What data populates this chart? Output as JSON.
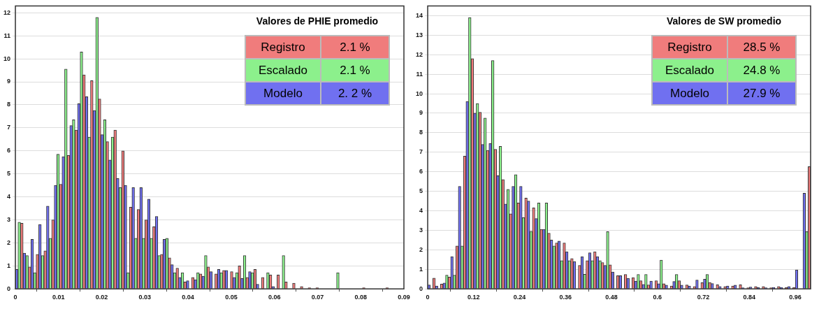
{
  "chart_data": [
    {
      "type": "histogram",
      "legend_title": "Valores de PHIE promedio",
      "legend": "top right",
      "grid": "y",
      "bins": [
        0,
        0.0018,
        0.0036,
        0.0054,
        0.0072,
        0.009,
        0.0108,
        0.0126,
        0.0144,
        0.0162,
        0.018,
        0.0198,
        0.0216,
        0.0234,
        0.0252,
        0.027,
        0.0288,
        0.0306,
        0.0324,
        0.0342,
        0.036,
        0.0378,
        0.0396,
        0.0414,
        0.0432,
        0.045,
        0.0468,
        0.0486,
        0.0504,
        0.0522,
        0.054,
        0.0558,
        0.0576,
        0.0594,
        0.0612,
        0.063,
        0.0648,
        0.0666,
        0.0684,
        0.0702,
        0.072,
        0.0738,
        0.0756,
        0.0774,
        0.0792,
        0.081,
        0.0828,
        0.0846,
        0.0864,
        0.0882,
        0.09
      ],
      "xlim": [
        0,
        0.09
      ],
      "xticks": [
        0,
        0.01,
        0.02,
        0.03,
        0.04,
        0.05,
        0.06,
        0.07,
        0.08,
        0.09
      ],
      "ylim": [
        0,
        12.3
      ],
      "yticks": [
        0,
        1,
        2,
        3,
        4,
        5,
        6,
        7,
        8,
        9,
        10,
        11,
        12
      ],
      "series": [
        {
          "name": "Registro",
          "color": "#f07c7c",
          "values": [
            2.85,
            0.95,
            1.5,
            1.65,
            3.0,
            4.55,
            5.8,
            6.9,
            9.3,
            9.05,
            8.25,
            6.4,
            6.9,
            6.0,
            3.55,
            3.45,
            3.0,
            2.7,
            1.5,
            1.35,
            0.9,
            0.3,
            0.5,
            0.65,
            0.95,
            0.65,
            0.8,
            0.75,
            1.0,
            0.5,
            0.85,
            0.5,
            0.6,
            0.6,
            0.3,
            0.25,
            0.1,
            0.05,
            0.05,
            0,
            0,
            0,
            0,
            0,
            0.05,
            0,
            0,
            0.05,
            0,
            0
          ]
        },
        {
          "name": "Escalado",
          "color": "#8cf08c",
          "values": [
            2.9,
            1.45,
            0.7,
            1.45,
            2.2,
            5.85,
            9.55,
            7.35,
            10.3,
            6.6,
            11.8,
            7.35,
            6.6,
            4.4,
            0.7,
            2.2,
            2.2,
            2.2,
            1.45,
            2.2,
            0.7,
            0.7,
            0,
            0.7,
            1.45,
            0,
            0.7,
            0,
            0.7,
            1.45,
            0.7,
            0,
            0.7,
            0,
            1.45,
            0,
            0,
            0,
            0,
            0,
            0,
            0.7,
            0,
            0,
            0,
            0,
            0,
            0,
            0,
            0
          ]
        },
        {
          "name": "Modelo",
          "color": "#7070f0",
          "values": [
            0.85,
            1.55,
            2.15,
            2.8,
            3.6,
            4.5,
            5.75,
            7.1,
            8.05,
            8.35,
            7.75,
            6.7,
            5.6,
            4.8,
            4.5,
            4.4,
            4.4,
            3.9,
            3.15,
            2.15,
            1.05,
            0.5,
            0.35,
            0.4,
            0.55,
            0.75,
            0.85,
            0.8,
            0.5,
            0.45,
            0.75,
            0.2,
            0,
            0.1,
            0,
            0,
            0,
            0,
            0,
            0,
            0,
            0,
            0,
            0,
            0,
            0,
            0,
            0,
            0,
            0
          ]
        }
      ],
      "annotations": [
        "2.1 %",
        "2.1 %",
        "2. 2 %"
      ]
    },
    {
      "type": "histogram",
      "legend_title": "Valores de SW promedio",
      "legend": "top right",
      "grid": "y",
      "bins": [
        0,
        0.02,
        0.04,
        0.06,
        0.08,
        0.1,
        0.12,
        0.14,
        0.16,
        0.18,
        0.2,
        0.22,
        0.24,
        0.26,
        0.28,
        0.3,
        0.32,
        0.34,
        0.36,
        0.38,
        0.4,
        0.42,
        0.44,
        0.46,
        0.48,
        0.5,
        0.52,
        0.54,
        0.56,
        0.58,
        0.6,
        0.62,
        0.64,
        0.66,
        0.68,
        0.7,
        0.72,
        0.74,
        0.76,
        0.78,
        0.8,
        0.82,
        0.84,
        0.86,
        0.88,
        0.9,
        0.92,
        0.94,
        0.96,
        0.98,
        1
      ],
      "xlim": [
        0,
        1
      ],
      "xticks": [
        0,
        0.12,
        0.24,
        0.36,
        0.48,
        0.6,
        0.72,
        0.84,
        0.96
      ],
      "ylim": [
        0,
        14.5
      ],
      "yticks": [
        0,
        1,
        2,
        3,
        4,
        5,
        6,
        7,
        8,
        9,
        10,
        11,
        12,
        13,
        14
      ],
      "series": [
        {
          "name": "Registro",
          "color": "#f07c7c",
          "values": [
            0.55,
            0.25,
            0.6,
            2.2,
            6.8,
            11.8,
            9.05,
            7.1,
            7.15,
            5.6,
            3.85,
            4.4,
            4.65,
            4.15,
            3.05,
            2.85,
            2.35,
            2.35,
            1.55,
            1.2,
            1.45,
            1.9,
            1.35,
            1.23,
            0.68,
            0.74,
            0.58,
            0.42,
            0.2,
            0.42,
            0.26,
            0.15,
            0.42,
            0.2,
            0.12,
            0.32,
            0.33,
            0.21,
            0.12,
            0.15,
            0.21,
            0.06,
            0.12,
            0.12,
            0.06,
            0.12,
            0.07,
            0.07,
            0,
            6.26
          ]
        },
        {
          "name": "Escalado",
          "color": "#8cf08c",
          "values": [
            0,
            0,
            0.7,
            0.7,
            2.2,
            13.9,
            9.5,
            8.75,
            11.7,
            7.3,
            5.1,
            5.85,
            3.65,
            2.95,
            4.4,
            4.4,
            2.2,
            1.45,
            1.45,
            0,
            0.75,
            1.45,
            1.45,
            2.93,
            0,
            0,
            0,
            0.74,
            0.74,
            0,
            1.47,
            0,
            0.74,
            0,
            0,
            0,
            0.74,
            0,
            0,
            0,
            0,
            0,
            0,
            0,
            0,
            0,
            0,
            0,
            0,
            2.93
          ]
        },
        {
          "name": "Modelo",
          "color": "#7070f0",
          "values": [
            0.2,
            0.15,
            0.3,
            1.65,
            5.25,
            9.6,
            9.0,
            7.4,
            7.45,
            5.8,
            4.35,
            5.25,
            5.25,
            4.5,
            3.6,
            3.05,
            2.5,
            2.45,
            1.9,
            1.4,
            1.65,
            1.85,
            1.65,
            1.2,
            0.86,
            0.68,
            0.54,
            0.4,
            0.23,
            0.4,
            0.26,
            0.19,
            0.38,
            0.19,
            0.15,
            0.45,
            0.5,
            0.27,
            0.12,
            0.15,
            0.19,
            0.06,
            0.09,
            0.07,
            0.06,
            0.08,
            0.08,
            0.12,
            0.97,
            4.9
          ]
        }
      ],
      "annotations": [
        "28.5 %",
        "24.8 %",
        "27.9 %"
      ]
    }
  ]
}
